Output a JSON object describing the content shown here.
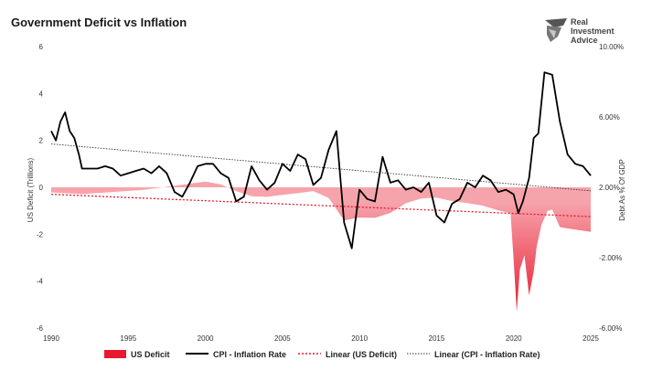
{
  "brand": {
    "name_line1": "Real",
    "name_line2": "Investment",
    "name_line3": "Advice"
  },
  "chart_data": {
    "type": "area",
    "title": "Government Deficit vs Inflation",
    "ylabel": "US Deficit (Trillions)",
    "y2label": "Debt As % Of GDP",
    "xlim": [
      1990,
      2025
    ],
    "ylim": [
      -6,
      6
    ],
    "y2lim": [
      -6,
      10
    ],
    "x_ticks": [
      1990,
      1995,
      2000,
      2005,
      2010,
      2015,
      2020,
      2025
    ],
    "y_ticks": [
      6,
      4,
      2,
      0,
      -2,
      -4,
      -6
    ],
    "y2_ticks": [
      "10.00%",
      "6.00%",
      "2.00%",
      "-2.00%",
      "-6.00%"
    ],
    "y2_tick_values": [
      10,
      6,
      2,
      -2,
      -6
    ],
    "legend": [
      "US Deficit",
      "CPI - Inflation Rate",
      "Linear (US Deficit)",
      "Linear (CPI - Inflation Rate)"
    ],
    "legend_position": "bottom",
    "colors": {
      "deficit_light": "#f6a4ac",
      "deficit_dark": "#e8192c",
      "cpi": "#000000",
      "trend_deficit": "#e8192c",
      "trend_cpi": "#333333"
    },
    "deficit": {
      "name": "US Deficit",
      "x": [
        1990,
        1992,
        1994,
        1996,
        1998,
        2000,
        2001,
        2002,
        2003,
        2004,
        2005,
        2006,
        2007,
        2008,
        2009,
        2009.5,
        2010,
        2011,
        2012,
        2013,
        2014,
        2015,
        2016,
        2017,
        2018,
        2019,
        2019.8,
        2020,
        2020.2,
        2020.4,
        2020.7,
        2021,
        2021.3,
        2021.5,
        2021.8,
        2022.2,
        2022.5,
        2023,
        2024,
        2025
      ],
      "y": [
        -0.22,
        -0.29,
        -0.2,
        -0.11,
        0.07,
        0.24,
        0.13,
        -0.16,
        -0.38,
        -0.41,
        -0.32,
        -0.25,
        -0.16,
        -0.45,
        -1.41,
        -1.35,
        -1.29,
        -1.3,
        -1.09,
        -0.68,
        -0.48,
        -0.44,
        -0.59,
        -0.67,
        -0.78,
        -0.98,
        -1.1,
        -3.1,
        -5.3,
        -3.5,
        -2.9,
        -4.6,
        -3.6,
        -2.5,
        -1.6,
        -1.0,
        -0.95,
        -1.7,
        -1.8,
        -1.9
      ]
    },
    "cpi": {
      "name": "CPI - Inflation Rate",
      "x": [
        1990,
        1990.3,
        1990.6,
        1990.9,
        1991.2,
        1991.5,
        1991.8,
        1992,
        1992.5,
        1993,
        1993.5,
        1994,
        1994.5,
        1995,
        1995.5,
        1996,
        1996.5,
        1997,
        1997.5,
        1998,
        1998.5,
        1999,
        1999.5,
        2000,
        2000.5,
        2001,
        2001.5,
        2002,
        2002.5,
        2003,
        2003.5,
        2004,
        2004.5,
        2005,
        2005.5,
        2006,
        2006.5,
        2007,
        2007.5,
        2008,
        2008.5,
        2009,
        2009.5,
        2010,
        2010.5,
        2011,
        2011.5,
        2012,
        2012.5,
        2013,
        2013.5,
        2014,
        2014.5,
        2015,
        2015.5,
        2016,
        2016.5,
        2017,
        2017.5,
        2018,
        2018.5,
        2019,
        2019.5,
        2020,
        2020.3,
        2020.6,
        2021,
        2021.3,
        2021.6,
        2022,
        2022.5,
        2023,
        2023.5,
        2024,
        2024.5,
        2025
      ],
      "y": [
        2.4,
        2.0,
        2.8,
        3.2,
        2.4,
        2.1,
        1.4,
        0.8,
        0.8,
        0.8,
        0.9,
        0.8,
        0.5,
        0.6,
        0.7,
        0.8,
        0.6,
        0.9,
        0.6,
        -0.2,
        -0.4,
        0.2,
        0.9,
        1.0,
        1.0,
        0.6,
        0.4,
        -0.6,
        -0.4,
        0.9,
        0.3,
        -0.1,
        0.2,
        1.0,
        0.7,
        1.4,
        1.2,
        0.1,
        0.4,
        1.6,
        2.4,
        -1.5,
        -2.6,
        -0.1,
        -0.5,
        -0.6,
        1.3,
        0.2,
        0.3,
        -0.1,
        0.0,
        -0.2,
        0.2,
        -1.2,
        -1.5,
        -0.7,
        -0.5,
        0.2,
        0.0,
        0.5,
        0.3,
        -0.2,
        -0.1,
        -0.3,
        -1.1,
        -0.6,
        0.4,
        2.1,
        2.3,
        4.9,
        4.8,
        2.8,
        1.4,
        1.0,
        0.9,
        0.5
      ]
    },
    "trend_deficit": {
      "name": "Linear (US Deficit)",
      "x": [
        1990,
        2025
      ],
      "y": [
        -0.3,
        -1.25
      ]
    },
    "trend_cpi": {
      "name": "Linear (CPI - Inflation Rate)",
      "x": [
        1990,
        2025
      ],
      "y": [
        1.85,
        -0.15
      ]
    }
  }
}
